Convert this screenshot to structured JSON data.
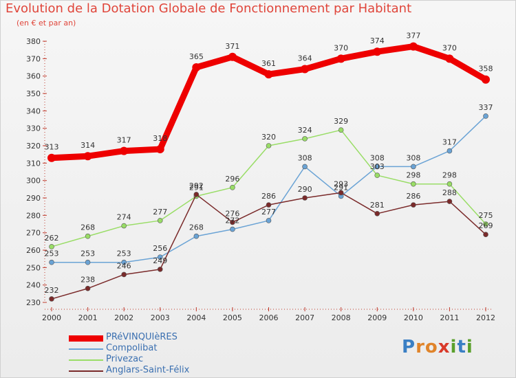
{
  "title": "Evolution de la Dotation Globale de Fonctionnement par Habitant",
  "subtitle": "(en € et par an)",
  "logo": {
    "letters": [
      {
        "ch": "P",
        "color": "#3a7fc4"
      },
      {
        "ch": "r",
        "color": "#e0842a"
      },
      {
        "ch": "o",
        "color": "#e0842a"
      },
      {
        "ch": "x",
        "color": "#d93a2a"
      },
      {
        "ch": "i",
        "color": "#5aa02c"
      },
      {
        "ch": "t",
        "color": "#3a7fc4"
      },
      {
        "ch": "i",
        "color": "#5aa02c"
      }
    ]
  },
  "chart_data": {
    "type": "line",
    "title": "Evolution de la Dotation Globale de Fonctionnement par Habitant",
    "ylabel": "(en € et par an)",
    "xlabel": "",
    "x": [
      "2000",
      "2001",
      "2002",
      "2003",
      "2004",
      "2005",
      "2006",
      "2007",
      "2008",
      "2009",
      "2010",
      "2011",
      "2012"
    ],
    "ylim": [
      230,
      380
    ],
    "yticks": [
      230,
      240,
      250,
      260,
      270,
      280,
      290,
      300,
      310,
      320,
      330,
      340,
      350,
      360,
      370,
      380
    ],
    "grid": false,
    "legend": "bottom-left",
    "series": [
      {
        "name": "PRéVINQUIèRES",
        "color": "#ee0000",
        "width": 9,
        "values": [
          313,
          314,
          317,
          318,
          365,
          371,
          361,
          364,
          370,
          374,
          377,
          370,
          358
        ]
      },
      {
        "name": "Compolibat",
        "color": "#6aa3d5",
        "width": 1.5,
        "values": [
          253,
          253,
          253,
          256,
          268,
          272,
          277,
          308,
          291,
          308,
          308,
          317,
          337
        ]
      },
      {
        "name": "Privezac",
        "color": "#99dd66",
        "width": 1.5,
        "values": [
          262,
          268,
          274,
          277,
          291,
          296,
          320,
          324,
          329,
          303,
          298,
          298,
          275
        ]
      },
      {
        "name": "Anglars-Saint-Félix",
        "color": "#7a2a2a",
        "width": 1.5,
        "values": [
          232,
          238,
          246,
          249,
          292,
          276,
          286,
          290,
          293,
          281,
          286,
          288,
          269
        ]
      }
    ],
    "labels": [
      [
        "313",
        "314",
        "317",
        "318",
        "365",
        "371",
        "361",
        "364",
        "370",
        "374",
        "377",
        "370",
        "358"
      ],
      [
        "253",
        "253",
        "253",
        "256",
        "268",
        "272",
        "277",
        "308",
        "291",
        "308",
        "308",
        "317",
        "337"
      ],
      [
        "262",
        "268",
        "274",
        "277",
        "291",
        "296",
        "320",
        "324",
        "329",
        "303",
        "298",
        "298",
        "275"
      ],
      [
        "232",
        "238",
        "246",
        "249",
        "292",
        "276",
        "286",
        "290",
        "293",
        "281",
        "286",
        "288",
        "269"
      ]
    ]
  }
}
